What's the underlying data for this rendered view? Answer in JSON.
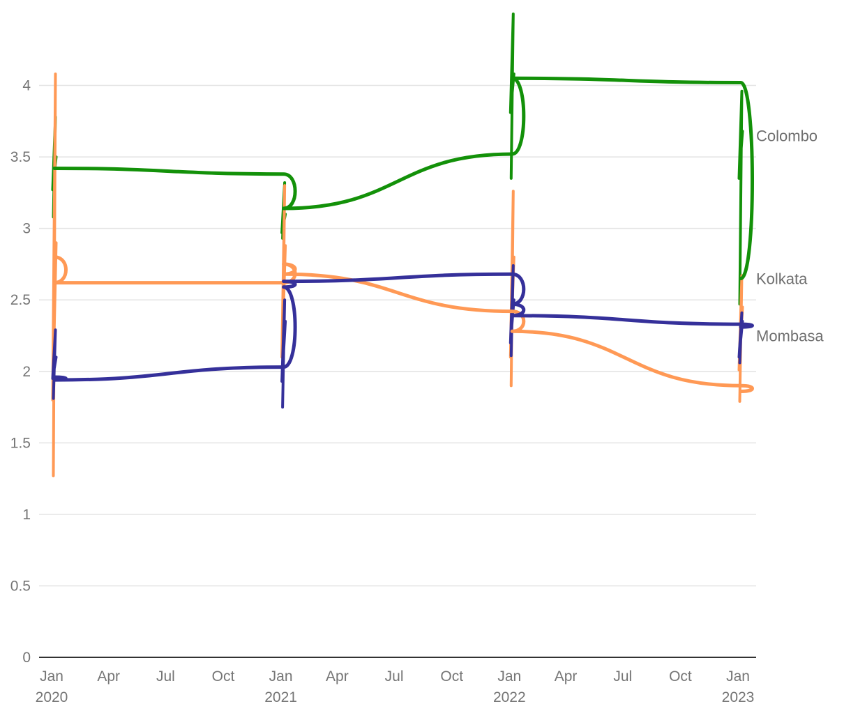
{
  "chart_data": {
    "type": "line",
    "title": "",
    "xlabel": "",
    "ylabel": "",
    "ylim": [
      0,
      4.5
    ],
    "y_ticks": [
      "0",
      "0.5",
      "1",
      "1.5",
      "2",
      "2.5",
      "3",
      "3.5",
      "4"
    ],
    "x_ticks": [
      {
        "date": "2020-01-01",
        "month": "Jan",
        "year": "2020"
      },
      {
        "date": "2020-04-01",
        "month": "Apr",
        "year": ""
      },
      {
        "date": "2020-07-01",
        "month": "Jul",
        "year": ""
      },
      {
        "date": "2020-10-01",
        "month": "Oct",
        "year": ""
      },
      {
        "date": "2021-01-01",
        "month": "Jan",
        "year": "2021"
      },
      {
        "date": "2021-04-01",
        "month": "Apr",
        "year": ""
      },
      {
        "date": "2021-07-01",
        "month": "Jul",
        "year": ""
      },
      {
        "date": "2021-10-01",
        "month": "Oct",
        "year": ""
      },
      {
        "date": "2022-01-01",
        "month": "Jan",
        "year": "2022"
      },
      {
        "date": "2022-04-01",
        "month": "Apr",
        "year": ""
      },
      {
        "date": "2022-07-01",
        "month": "Jul",
        "year": ""
      },
      {
        "date": "2022-10-01",
        "month": "Oct",
        "year": ""
      },
      {
        "date": "2023-01-01",
        "month": "Jan",
        "year": "2023"
      }
    ],
    "grid": true,
    "legend": "direct labels at right end of lines",
    "series": [
      {
        "name": "Colombo",
        "color": "#139109",
        "points": [
          [
            "2020-01-01",
            3.42
          ],
          [
            "2021-01-01",
            3.38
          ],
          [
            "2021-01-01",
            3.14
          ],
          [
            "2022-01-01",
            3.52
          ],
          [
            "2022-01-01",
            4.05
          ],
          [
            "2023-01-01",
            4.02
          ],
          [
            "2023-01-01",
            2.65
          ]
        ]
      },
      {
        "name": "Kolkata",
        "color": "#ff9955",
        "points": [
          [
            "2020-01-01",
            2.8
          ],
          [
            "2020-01-01",
            2.62
          ],
          [
            "2021-01-01",
            2.62
          ],
          [
            "2021-01-01",
            2.75
          ],
          [
            "2021-01-01",
            2.68
          ],
          [
            "2022-01-01",
            2.42
          ],
          [
            "2022-01-01",
            2.28
          ],
          [
            "2023-01-01",
            1.9
          ],
          [
            "2023-01-01",
            1.86
          ]
        ]
      },
      {
        "name": "Mombasa",
        "color": "#35309a",
        "points": [
          [
            "2020-01-01",
            1.96
          ],
          [
            "2020-01-01",
            1.94
          ],
          [
            "2021-01-01",
            2.03
          ],
          [
            "2021-01-01",
            2.59
          ],
          [
            "2021-01-01",
            2.63
          ],
          [
            "2022-01-01",
            2.68
          ],
          [
            "2022-01-01",
            2.47
          ],
          [
            "2022-01-01",
            2.39
          ],
          [
            "2023-01-01",
            2.33
          ],
          [
            "2023-01-01",
            2.31
          ]
        ]
      }
    ],
    "spikes": [
      {
        "series": "Colombo",
        "date": "2020-01-01",
        "values": [
          3.08,
          3.78,
          3.27,
          3.5
        ]
      },
      {
        "series": "Colombo",
        "date": "2021-01-01",
        "values": [
          2.93,
          3.32,
          2.97,
          3.1
        ]
      },
      {
        "series": "Colombo",
        "date": "2022-01-01",
        "values": [
          3.35,
          4.5,
          3.81,
          4.08
        ]
      },
      {
        "series": "Colombo",
        "date": "2023-01-01",
        "values": [
          2.47,
          3.96,
          3.35,
          3.68
        ]
      },
      {
        "series": "Kolkata",
        "date": "2020-01-01",
        "values": [
          1.27,
          4.08,
          1.8,
          2.9
        ]
      },
      {
        "series": "Kolkata",
        "date": "2021-01-01",
        "values": [
          1.98,
          3.3,
          2.1,
          2.88
        ]
      },
      {
        "series": "Kolkata",
        "date": "2022-01-01",
        "values": [
          1.9,
          3.26,
          2.1,
          2.8
        ]
      },
      {
        "series": "Kolkata",
        "date": "2023-01-01",
        "values": [
          1.79,
          2.67,
          2.01,
          2.45
        ]
      },
      {
        "series": "Mombasa",
        "date": "2020-01-01",
        "values": [
          1.81,
          2.29,
          1.95,
          2.1
        ]
      },
      {
        "series": "Mombasa",
        "date": "2021-01-01",
        "values": [
          1.75,
          2.5,
          1.93,
          2.35
        ]
      },
      {
        "series": "Mombasa",
        "date": "2022-01-01",
        "values": [
          2.11,
          2.74,
          2.2,
          2.5
        ]
      },
      {
        "series": "Mombasa",
        "date": "2023-01-01",
        "values": [
          2.06,
          2.41,
          2.1,
          2.35
        ]
      }
    ],
    "labels": [
      {
        "series": "Colombo",
        "text": "Colombo",
        "value": 3.65
      },
      {
        "series": "Kolkata",
        "text": "Kolkata",
        "value": 2.65
      },
      {
        "series": "Mombasa",
        "text": "Mombasa",
        "value": 2.25
      }
    ]
  }
}
